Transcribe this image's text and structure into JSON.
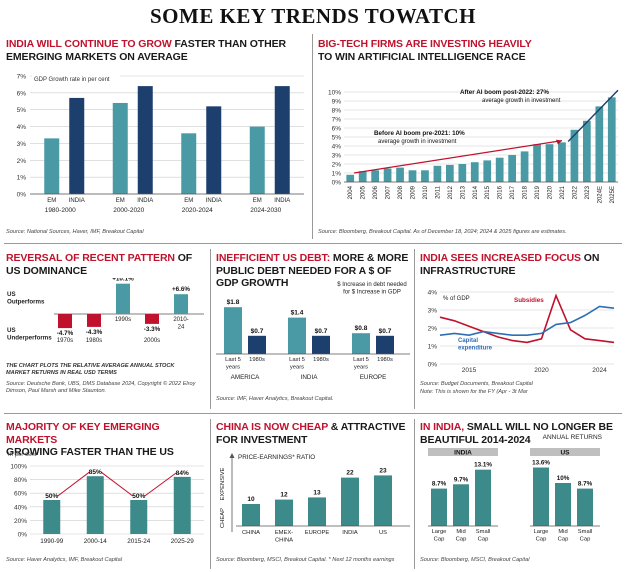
{
  "title": "SOME KEY TRENDS TOWATCH",
  "colors": {
    "teal": "#4a9aa5",
    "navy": "#1c3f6e",
    "red": "#c0122c",
    "green": "#3c8b8a"
  },
  "panels": {
    "p1": {
      "title_red": "INDIA WILL CONTINUE TO GROW",
      "title_black": " FASTER THAN OTHER EMERGING MARKETS ON AVERAGE",
      "note": "GDP Growth rate in per cent",
      "source": "Source: National Sources, Haver, IMF, Breakout Capital"
    },
    "p2": {
      "title_red": "BIG-TECH FIRMS ARE INVESTING HEAVILY",
      "title_black": "TO WIN ARTIFICIAL INTELLIGENCE RACE",
      "ann_after_bold": "After AI boom post-2022: 27%",
      "ann_after": "average growth in investment",
      "ann_before_bold": "Before AI boom pre-2021: 10%",
      "ann_before": "average growth in investment",
      "source": "Source: Bloomberg, Breakout Capital. As of December 18, 2024; 2024 & 2025 figures are estimates."
    },
    "p3": {
      "title_red": "REVERSAL OF RECENT PATTERN",
      "title_black": " OF US DOMINANCE",
      "label_out": "US Outperforms",
      "label_under": "US Underperforms",
      "note": "THE CHART PLOTS THE RELATIVE AVERAGE ANNUAL STOCK MARKET RETURNS IN REAL USD TERMS",
      "source": "Source: Deutsche Bank, UBS, DMS Database 2024, Copyright © 2022 Elroy Dimson, Paul Marsh and Mike Staunton."
    },
    "p4": {
      "title_red": "INEFFICIENT US DEBT:",
      "title_black": " MORE & MORE PUBLIC DEBT NEEDED FOR A $ OF GDP GROWTH",
      "legend1": "$ Increase in debt needed",
      "legend2": "for $ Increase in GDP",
      "source": "Source: IMF, Haver Analytics, Breakout Capital."
    },
    "p5": {
      "title_red": "INDIA SEES INCREASED FOCUS",
      "title_black": " ON INFRASTRUCTURE",
      "ylabel": "% of GDP",
      "subsidies": "Subsidies",
      "capex": "Capital expenditure",
      "source": "Source: Budget Documents, Breakout Capital",
      "source2": "Note: This is shown for the FY (Apr - 3t Mar"
    },
    "p6": {
      "title_red": "MAJORITY OF KEY EMERGING MARKETS",
      "title_black": "GROWING FASTER THAN THE US",
      "unit": "In per cent",
      "source": "Source: Haver Analytics, IMF, Breakout Capital"
    },
    "p7": {
      "title_red": "CHINA IS NOW CHEAP",
      "title_black": " & ATTRACTIVE FOR INVESTMENT",
      "axis": "PRICE-EARNINGS* RATIO",
      "expensive": "EXPENSIVE",
      "cheap": "CHEAP",
      "source": "Source: Bloomberg, MSCI, Breakout Capital. * Next 12 months earnings"
    },
    "p8": {
      "title_red": "IN INDIA,",
      "title_black": " SMALL WILL NO LONGER BE BEAUTIFUL 2014-2024",
      "subtitle": "ANNUAL RETURNS",
      "india": "INDIA",
      "us": "US",
      "source": "Source: Bloomberg, MSCI, Breakout Capital"
    }
  },
  "chart_data": [
    {
      "id": "gdp-growth",
      "type": "bar",
      "ylim": [
        0,
        7
      ],
      "yticks": [
        "0%",
        "1%",
        "2%",
        "3%",
        "4%",
        "5%",
        "6%",
        "7%"
      ],
      "groups": [
        "1980-2000",
        "2000-2020",
        "2020-2024",
        "2024-2030"
      ],
      "series": [
        {
          "name": "EM",
          "values": [
            3.3,
            5.4,
            3.6,
            4.0
          ]
        },
        {
          "name": "INDIA",
          "values": [
            5.7,
            6.4,
            5.2,
            6.4
          ]
        }
      ]
    },
    {
      "id": "ai-investment",
      "type": "bar",
      "ylim": [
        0,
        10
      ],
      "yticks": [
        "0%",
        "1%",
        "2%",
        "3%",
        "4%",
        "5%",
        "6%",
        "7%",
        "8%",
        "9%",
        "10%"
      ],
      "categories": [
        "2004",
        "2005",
        "2006",
        "2007",
        "2008",
        "2009",
        "2010",
        "2011",
        "2012",
        "2013",
        "2014",
        "2015",
        "2016",
        "2017",
        "2018",
        "2019",
        "2020",
        "2021",
        "2022",
        "2023",
        "2024E",
        "2025E"
      ],
      "values": [
        0.8,
        1.2,
        1.3,
        1.5,
        1.6,
        1.3,
        1.3,
        1.8,
        1.9,
        2.0,
        2.2,
        2.4,
        2.7,
        3.0,
        3.4,
        4.2,
        4.2,
        4.4,
        5.8,
        6.8,
        8.4,
        9.4
      ]
    },
    {
      "id": "us-relative-returns",
      "type": "bar",
      "categories": [
        "1970s",
        "1980s",
        "1990s",
        "2000s",
        "2010-24"
      ],
      "values": [
        -4.7,
        -4.3,
        10.1,
        -3.3,
        6.6
      ],
      "labels": [
        "-4.7%",
        "-4.3%",
        "+10.1%",
        "-3.3%",
        "+6.6%"
      ]
    },
    {
      "id": "us-debt",
      "type": "bar",
      "groups": [
        "AMERICA",
        "INDIA",
        "EUROPE"
      ],
      "categories": [
        "Last 5 years",
        "1980s"
      ],
      "values": [
        [
          1.8,
          0.7
        ],
        [
          1.4,
          0.7
        ],
        [
          0.8,
          0.7
        ]
      ],
      "labels": [
        [
          "$1.8",
          "$0.7"
        ],
        [
          "$1.4",
          "$0.7"
        ],
        [
          "$0.8",
          "$0.7"
        ]
      ]
    },
    {
      "id": "infrastructure",
      "type": "line",
      "ylim": [
        0,
        4
      ],
      "yticks": [
        "0%",
        "1%",
        "2%",
        "3%",
        "4%"
      ],
      "xticks": [
        "2015",
        "2020",
        "2024"
      ],
      "x": [
        2013,
        2014,
        2015,
        2016,
        2017,
        2018,
        2019,
        2020,
        2021,
        2022,
        2023,
        2024,
        2025
      ],
      "series": [
        {
          "name": "Subsidies",
          "values": [
            2.6,
            2.4,
            2.1,
            1.8,
            1.5,
            1.3,
            1.2,
            1.4,
            3.8,
            1.9,
            1.4,
            1.3,
            1.2
          ]
        },
        {
          "name": "Capital expenditure",
          "values": [
            1.6,
            1.7,
            1.6,
            1.8,
            1.7,
            1.6,
            1.6,
            1.7,
            2.2,
            2.3,
            2.7,
            3.2,
            3.1
          ]
        }
      ]
    },
    {
      "id": "em-growth",
      "type": "bar",
      "ylim": [
        0,
        100
      ],
      "yticks": [
        "0%",
        "20%",
        "40%",
        "60%",
        "80%",
        "100%"
      ],
      "categories": [
        "1990-99",
        "2000-14",
        "2015-24",
        "2025-29"
      ],
      "values": [
        50,
        85,
        50,
        84
      ],
      "labels": [
        "50%",
        "85%",
        "50%",
        "84%"
      ]
    },
    {
      "id": "pe-ratio",
      "type": "bar",
      "categories": [
        "CHINA",
        "EMEX-CHINA",
        "EUROPE",
        "INDIA",
        "US"
      ],
      "values": [
        10,
        12,
        13,
        22,
        23
      ]
    },
    {
      "id": "annual-returns",
      "type": "bar",
      "groups": [
        "INDIA",
        "US"
      ],
      "categories": [
        "Large Cap",
        "Mid Cap",
        "Small Cap"
      ],
      "values": [
        [
          8.7,
          9.7,
          13.1
        ],
        [
          13.6,
          10,
          8.7
        ]
      ],
      "labels": [
        [
          "8.7%",
          "9.7%",
          "13.1%"
        ],
        [
          "13.6%",
          "10%",
          "8.7%"
        ]
      ]
    }
  ]
}
